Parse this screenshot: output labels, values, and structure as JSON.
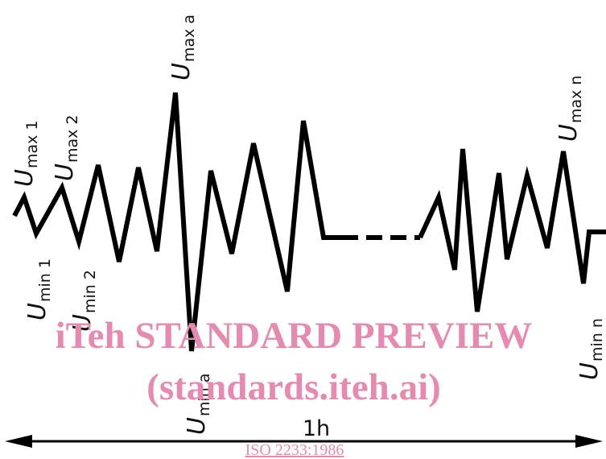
{
  "labels": {
    "u": "U",
    "max1": "max 1",
    "max2": "max 2",
    "maxa": "max a",
    "maxn": "max n",
    "min1": "min 1",
    "min2": "min 2",
    "mina": "min a",
    "minn": "min n"
  },
  "time_label": "1h",
  "watermark": {
    "line1": "iTeh STANDARD PREVIEW",
    "line2": "(standards.iteh.ai)"
  },
  "footer_link": "ISO 2233:1986",
  "colors": {
    "line": "#000000",
    "watermark": "#e58ab0"
  }
}
